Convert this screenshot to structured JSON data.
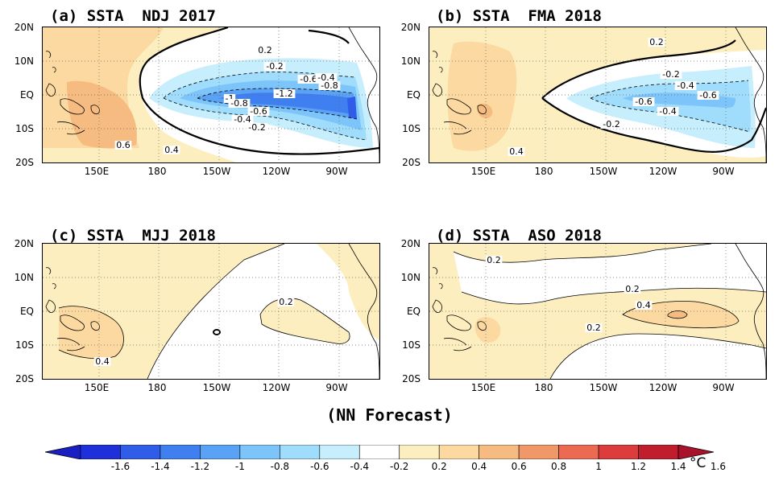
{
  "panels": [
    {
      "title": "(a) SSTA  NDJ 2017",
      "contour_labels": [
        "0.2",
        "-0.2",
        "-0.6",
        "-0.4",
        "-0.8",
        "-1",
        "-1.2",
        "-0.8",
        "-0.6",
        "-0.4",
        "-0.2",
        "0.6",
        "0.4"
      ]
    },
    {
      "title": "(b) SSTA  FMA 2018",
      "contour_labels": [
        "0.2",
        "-0.2",
        "-0.4",
        "-0.6",
        "-0.6",
        "-0.4",
        "-0.2",
        "0.4"
      ]
    },
    {
      "title": "(c) SSTA  MJJ 2018",
      "contour_labels": [
        "0.2",
        "0.4"
      ]
    },
    {
      "title": "(d) SSTA  ASO 2018",
      "contour_labels": [
        "0.2",
        "0.2",
        "0.4",
        "0.2"
      ]
    }
  ],
  "axes": {
    "lat_labels": [
      "20N",
      "10N",
      "EQ",
      "10S",
      "20S"
    ],
    "lon_labels": [
      "150E",
      "180",
      "150W",
      "120W",
      "90W"
    ]
  },
  "caption": "(NN Forecast)",
  "colorbar": {
    "labels": [
      "-1.6",
      "-1.4",
      "-1.2",
      "-1",
      "-0.8",
      "-0.6",
      "-0.4",
      "-0.2",
      "0.2",
      "0.4",
      "0.6",
      "0.8",
      "1",
      "1.2",
      "1.4",
      "1.6"
    ],
    "unit": "°C",
    "colors": [
      "#1f2fd9",
      "#2f5de8",
      "#3f7ff0",
      "#5aa2f5",
      "#7cc4f9",
      "#a0dcfb",
      "#c6eefc",
      "#ffffff",
      "#fdeec0",
      "#fbd9a0",
      "#f6bb80",
      "#f19868",
      "#ec6a52",
      "#dc3c3c",
      "#c01e2c"
    ]
  }
}
